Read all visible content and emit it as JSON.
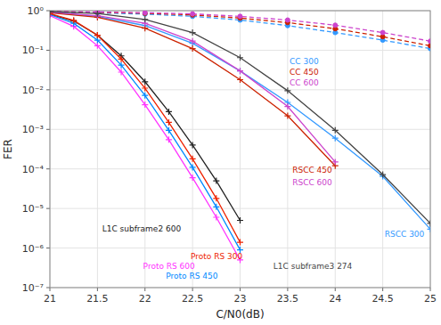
{
  "chart_data": {
    "type": "line",
    "xlabel": "C/N0(dB)",
    "ylabel": "FER",
    "log": "y",
    "grid": true,
    "xlim": [
      21,
      25
    ],
    "xticks": [
      21,
      21.5,
      22,
      22.5,
      23,
      23.5,
      24,
      24.5,
      25
    ],
    "ylim": [
      1e-07,
      1
    ],
    "yticks": [
      {
        "value": 1e-07,
        "label": "10⁻⁷"
      },
      {
        "value": 1e-06,
        "label": "10⁻⁶"
      },
      {
        "value": 1e-05,
        "label": "10⁻⁵"
      },
      {
        "value": 0.0001,
        "label": "10⁻⁴"
      },
      {
        "value": 0.001,
        "label": "10⁻³"
      },
      {
        "value": 0.01,
        "label": "10⁻²"
      },
      {
        "value": 0.1,
        "label": "10⁻¹"
      },
      {
        "value": 1,
        "label": "10⁰"
      }
    ],
    "series": [
      {
        "color": "#3399FF",
        "line_style": "dashed",
        "marker": "circle",
        "x": [
          21.0,
          21.5,
          22.0,
          22.5,
          23.0,
          23.5,
          24.0,
          24.5,
          25.0
        ],
        "values": [
          0.92,
          0.88,
          0.82,
          0.72,
          0.58,
          0.42,
          0.28,
          0.18,
          0.11
        ]
      },
      {
        "color": "#CC2200",
        "line_style": "dashed",
        "marker": "circle",
        "x": [
          21.0,
          21.5,
          22.0,
          22.5,
          23.0,
          23.5,
          24.0,
          24.5,
          25.0
        ],
        "values": [
          0.94,
          0.91,
          0.86,
          0.78,
          0.65,
          0.5,
          0.35,
          0.22,
          0.13
        ]
      },
      {
        "color": "#CC44CC",
        "line_style": "dashed",
        "marker": "circle",
        "x": [
          21.0,
          21.5,
          22.0,
          22.5,
          23.0,
          23.5,
          24.0,
          24.5,
          25.0
        ],
        "values": [
          0.96,
          0.93,
          0.89,
          0.83,
          0.72,
          0.58,
          0.43,
          0.28,
          0.17
        ]
      },
      {
        "color": "#3399FF",
        "line_style": "solid",
        "marker": "plus",
        "x": [
          21.0,
          21.5,
          22.0,
          22.5,
          23.0,
          23.5,
          24.0,
          24.5,
          25.0
        ],
        "values": [
          0.9,
          0.72,
          0.42,
          0.15,
          0.03,
          0.0048,
          0.0006,
          6.5e-05,
          3e-06
        ]
      },
      {
        "color": "#CC2200",
        "line_style": "solid",
        "marker": "plus",
        "x": [
          21.0,
          21.5,
          22.0,
          22.5,
          23.0,
          23.5,
          24.0
        ],
        "values": [
          0.88,
          0.68,
          0.36,
          0.11,
          0.018,
          0.0022,
          0.00012
        ]
      },
      {
        "color": "#CC44CC",
        "line_style": "solid",
        "marker": "plus",
        "x": [
          21.0,
          21.5,
          22.0,
          22.5,
          23.0,
          23.5,
          24.0
        ],
        "values": [
          0.92,
          0.75,
          0.48,
          0.17,
          0.03,
          0.0038,
          0.00015
        ]
      },
      {
        "color": "#222222",
        "line_style": "solid",
        "marker": "plus",
        "x": [
          21.0,
          21.25,
          21.5,
          21.75,
          22.0,
          22.25,
          22.5,
          22.75,
          23.0
        ],
        "values": [
          0.82,
          0.55,
          0.24,
          0.072,
          0.016,
          0.0028,
          0.0004,
          5e-05,
          5e-06
        ]
      },
      {
        "color": "#FF33FF",
        "line_style": "solid",
        "marker": "plus",
        "x": [
          21.0,
          21.25,
          21.5,
          21.75,
          22.0,
          22.25,
          22.5,
          22.75,
          23.0
        ],
        "values": [
          0.75,
          0.4,
          0.13,
          0.028,
          0.0042,
          0.00055,
          6e-05,
          6e-06,
          5e-07
        ]
      },
      {
        "color": "#0088FF",
        "line_style": "solid",
        "marker": "plus",
        "x": [
          21.0,
          21.25,
          21.5,
          21.75,
          22.0,
          22.25,
          22.5,
          22.75,
          23.0
        ],
        "values": [
          0.8,
          0.48,
          0.18,
          0.042,
          0.0072,
          0.00095,
          0.00011,
          1.1e-05,
          9e-07
        ]
      },
      {
        "color": "#EE2200",
        "line_style": "solid",
        "marker": "plus",
        "x": [
          21.0,
          21.25,
          21.5,
          21.75,
          22.0,
          22.25,
          22.5,
          22.75,
          23.0
        ],
        "values": [
          0.84,
          0.57,
          0.24,
          0.06,
          0.011,
          0.0015,
          0.00018,
          1.8e-05,
          1.4e-06
        ]
      },
      {
        "color": "#444444",
        "line_style": "solid",
        "marker": "plus",
        "x": [
          21.0,
          21.5,
          22.0,
          22.5,
          23.0,
          23.5,
          24.0,
          24.5,
          25.0
        ],
        "values": [
          0.95,
          0.85,
          0.6,
          0.28,
          0.065,
          0.0095,
          0.00095,
          7.2e-05,
          4.2e-06
        ]
      }
    ],
    "annotations": [
      {
        "text": "CC 300",
        "x": 23.52,
        "y": 0.052,
        "color": "#3399FF"
      },
      {
        "text": "CC 450",
        "x": 23.52,
        "y": 0.028,
        "color": "#CC2200"
      },
      {
        "text": "CC 600",
        "x": 23.52,
        "y": 0.015,
        "color": "#CC44CC"
      },
      {
        "text": "RSCC 450",
        "x": 23.55,
        "y": 9.5e-05,
        "color": "#CC2200"
      },
      {
        "text": "RSCC 600",
        "x": 23.55,
        "y": 4.5e-05,
        "color": "#CC44CC"
      },
      {
        "text": "RSCC 300",
        "x": 24.52,
        "y": 2.2e-06,
        "color": "#3399FF"
      },
      {
        "text": "L1C subframe2 600",
        "x": 21.55,
        "y": 3e-06,
        "color": "#222222"
      },
      {
        "text": "Proto RS 600",
        "x": 21.98,
        "y": 3.5e-07,
        "color": "#FF33FF"
      },
      {
        "text": "Proto RS 450",
        "x": 22.22,
        "y": 3.5e-07,
        "color": "#0088FF"
      },
      {
        "text": "Proto RS 300",
        "x": 22.48,
        "y": 3.5e-07,
        "color": "#EE2200"
      },
      {
        "text": "L1C subframe3 274",
        "x": 23.35,
        "y": 3.5e-07,
        "color": "#444444"
      }
    ]
  }
}
